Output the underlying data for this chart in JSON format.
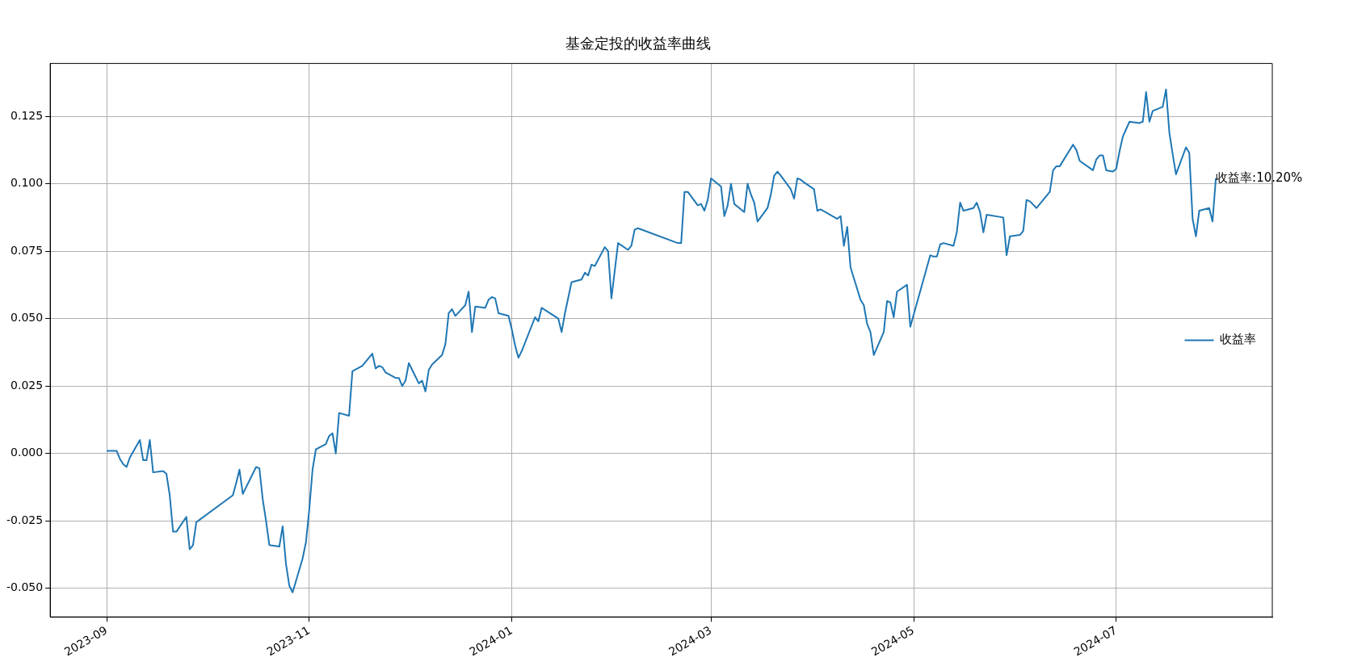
{
  "chart_data": {
    "type": "line",
    "title": "基金定投的收益率曲线",
    "legend": "right",
    "grid": true,
    "marker": "none",
    "line_style": "solid",
    "xlim": [
      "2023-08-15",
      "2024-08-17"
    ],
    "ylim": [
      -0.0606,
      0.1446
    ],
    "xticks": [
      "2023-09",
      "2023-11",
      "2024-01",
      "2024-03",
      "2024-05",
      "2024-07"
    ],
    "yticks": [
      {
        "value": -0.05,
        "label": "-0.050"
      },
      {
        "value": -0.025,
        "label": "-0.025"
      },
      {
        "value": 0,
        "label": "0.000"
      },
      {
        "value": 0.025,
        "label": "0.025"
      },
      {
        "value": 0.05,
        "label": "0.050"
      },
      {
        "value": 0.075,
        "label": "0.075"
      },
      {
        "value": 0.1,
        "label": "0.100"
      },
      {
        "value": 0.125,
        "label": "0.125"
      }
    ],
    "annotations": [
      {
        "text": "收益率:10.20%",
        "x": "2024-07-31",
        "y": 0.102
      }
    ],
    "x": [
      "2023-09-01",
      "2023-09-04",
      "2023-09-05",
      "2023-09-06",
      "2023-09-07",
      "2023-09-08",
      "2023-09-11",
      "2023-09-12",
      "2023-09-13",
      "2023-09-14",
      "2023-09-15",
      "2023-09-18",
      "2023-09-19",
      "2023-09-20",
      "2023-09-21",
      "2023-09-22",
      "2023-09-25",
      "2023-09-26",
      "2023-09-27",
      "2023-09-28",
      "2023-10-09",
      "2023-10-10",
      "2023-10-11",
      "2023-10-12",
      "2023-10-16",
      "2023-10-17",
      "2023-10-18",
      "2023-10-19",
      "2023-10-20",
      "2023-10-23",
      "2023-10-24",
      "2023-10-25",
      "2023-10-26",
      "2023-10-27",
      "2023-10-30",
      "2023-10-31",
      "2023-11-01",
      "2023-11-02",
      "2023-11-03",
      "2023-11-06",
      "2023-11-07",
      "2023-11-08",
      "2023-11-09",
      "2023-11-10",
      "2023-11-13",
      "2023-11-14",
      "2023-11-17",
      "2023-11-20",
      "2023-11-21",
      "2023-11-22",
      "2023-11-23",
      "2023-11-24",
      "2023-11-27",
      "2023-11-28",
      "2023-11-29",
      "2023-11-30",
      "2023-12-01",
      "2023-12-04",
      "2023-12-05",
      "2023-12-06",
      "2023-12-07",
      "2023-12-08",
      "2023-12-11",
      "2023-12-12",
      "2023-12-13",
      "2023-12-14",
      "2023-12-15",
      "2023-12-18",
      "2023-12-19",
      "2023-12-20",
      "2023-12-21",
      "2023-12-24",
      "2023-12-25",
      "2023-12-26",
      "2023-12-27",
      "2023-12-28",
      "2023-12-31",
      "2024-01-01",
      "2024-01-02",
      "2024-01-03",
      "2024-01-04",
      "2024-01-08",
      "2024-01-09",
      "2024-01-10",
      "2024-01-15",
      "2024-01-16",
      "2024-01-17",
      "2024-01-19",
      "2024-01-22",
      "2024-01-23",
      "2024-01-24",
      "2024-01-25",
      "2024-01-26",
      "2024-01-29",
      "2024-01-30",
      "2024-01-31",
      "2024-02-02",
      "2024-02-05",
      "2024-02-06",
      "2024-02-07",
      "2024-02-08",
      "2024-02-20",
      "2024-02-21",
      "2024-02-22",
      "2024-02-23",
      "2024-02-26",
      "2024-02-27",
      "2024-02-28",
      "2024-02-29",
      "2024-03-01",
      "2024-03-04",
      "2024-03-05",
      "2024-03-06",
      "2024-03-07",
      "2024-03-08",
      "2024-03-11",
      "2024-03-12",
      "2024-03-13",
      "2024-03-14",
      "2024-03-15",
      "2024-03-18",
      "2024-03-19",
      "2024-03-20",
      "2024-03-21",
      "2024-03-22",
      "2024-03-25",
      "2024-03-26",
      "2024-03-27",
      "2024-03-28",
      "2024-03-29",
      "2024-04-01",
      "2024-04-02",
      "2024-04-03",
      "2024-04-08",
      "2024-04-09",
      "2024-04-10",
      "2024-04-11",
      "2024-04-12",
      "2024-04-15",
      "2024-04-16",
      "2024-04-17",
      "2024-04-18",
      "2024-04-19",
      "2024-04-22",
      "2024-04-23",
      "2024-04-24",
      "2024-04-25",
      "2024-04-26",
      "2024-04-29",
      "2024-04-30",
      "2024-05-06",
      "2024-05-07",
      "2024-05-08",
      "2024-05-09",
      "2024-05-10",
      "2024-05-13",
      "2024-05-14",
      "2024-05-15",
      "2024-05-16",
      "2024-05-19",
      "2024-05-20",
      "2024-05-21",
      "2024-05-22",
      "2024-05-23",
      "2024-05-28",
      "2024-05-29",
      "2024-05-30",
      "2024-06-02",
      "2024-06-03",
      "2024-06-04",
      "2024-06-05",
      "2024-06-07",
      "2024-06-11",
      "2024-06-12",
      "2024-06-13",
      "2024-06-14",
      "2024-06-18",
      "2024-06-19",
      "2024-06-20",
      "2024-06-24",
      "2024-06-25",
      "2024-06-26",
      "2024-06-27",
      "2024-06-28",
      "2024-06-30",
      "2024-07-01",
      "2024-07-02",
      "2024-07-03",
      "2024-07-05",
      "2024-07-08",
      "2024-07-09",
      "2024-07-10",
      "2024-07-11",
      "2024-07-12",
      "2024-07-15",
      "2024-07-16",
      "2024-07-17",
      "2024-07-18",
      "2024-07-19",
      "2024-07-22",
      "2024-07-23",
      "2024-07-24",
      "2024-07-25",
      "2024-07-26",
      "2024-07-29",
      "2024-07-30",
      "2024-07-31"
    ],
    "series": [
      {
        "name": "收益率",
        "color": "#1f77b4",
        "values": [
          0.001,
          0.001,
          -0.002,
          -0.004,
          -0.005,
          -0.0015,
          0.005,
          -0.0025,
          -0.0025,
          0.005,
          -0.007,
          -0.0065,
          -0.0075,
          -0.0155,
          -0.029,
          -0.029,
          -0.0235,
          -0.0355,
          -0.034,
          -0.0255,
          -0.0155,
          -0.011,
          -0.006,
          -0.015,
          -0.005,
          -0.0055,
          -0.017,
          -0.025,
          -0.034,
          -0.0345,
          -0.027,
          -0.041,
          -0.049,
          -0.0515,
          -0.039,
          -0.033,
          -0.021,
          -0.006,
          0.0015,
          0.0035,
          0.0065,
          0.0075,
          0.0,
          0.015,
          0.014,
          0.0305,
          0.0325,
          0.037,
          0.0315,
          0.0325,
          0.032,
          0.03,
          0.028,
          0.028,
          0.025,
          0.027,
          0.0335,
          0.026,
          0.027,
          0.023,
          0.031,
          0.033,
          0.0365,
          0.0405,
          0.052,
          0.0535,
          0.051,
          0.055,
          0.06,
          0.045,
          0.0545,
          0.054,
          0.057,
          0.058,
          0.0575,
          0.052,
          0.051,
          0.046,
          0.04,
          0.0355,
          0.038,
          0.0505,
          0.049,
          0.054,
          0.05,
          0.045,
          0.052,
          0.0635,
          0.0645,
          0.067,
          0.066,
          0.07,
          0.0695,
          0.0765,
          0.075,
          0.0575,
          0.078,
          0.0755,
          0.077,
          0.083,
          0.0835,
          0.078,
          0.078,
          0.097,
          0.097,
          0.092,
          0.0925,
          0.09,
          0.094,
          0.102,
          0.099,
          0.088,
          0.092,
          0.1,
          0.0925,
          0.0895,
          0.1,
          0.096,
          0.093,
          0.086,
          0.091,
          0.096,
          0.103,
          0.1045,
          0.103,
          0.098,
          0.0945,
          0.102,
          0.1015,
          0.1005,
          0.098,
          0.09,
          0.0905,
          0.087,
          0.088,
          0.077,
          0.084,
          0.069,
          0.057,
          0.055,
          0.048,
          0.045,
          0.0365,
          0.045,
          0.0565,
          0.056,
          0.0505,
          0.06,
          0.0625,
          0.047,
          0.0735,
          0.073,
          0.073,
          0.0775,
          0.078,
          0.077,
          0.082,
          0.093,
          0.09,
          0.091,
          0.093,
          0.0895,
          0.082,
          0.0885,
          0.0875,
          0.0735,
          0.0805,
          0.081,
          0.0825,
          0.094,
          0.0935,
          0.091,
          0.097,
          0.105,
          0.1065,
          0.1065,
          0.1145,
          0.1125,
          0.1085,
          0.105,
          0.109,
          0.1105,
          0.1105,
          0.105,
          0.1045,
          0.1055,
          0.112,
          0.1175,
          0.123,
          0.1225,
          0.123,
          0.134,
          0.123,
          0.127,
          0.1285,
          0.135,
          0.119,
          0.111,
          0.1035,
          0.1135,
          0.1115,
          0.087,
          0.0805,
          0.09,
          0.091,
          0.086,
          0.102
        ]
      }
    ]
  }
}
